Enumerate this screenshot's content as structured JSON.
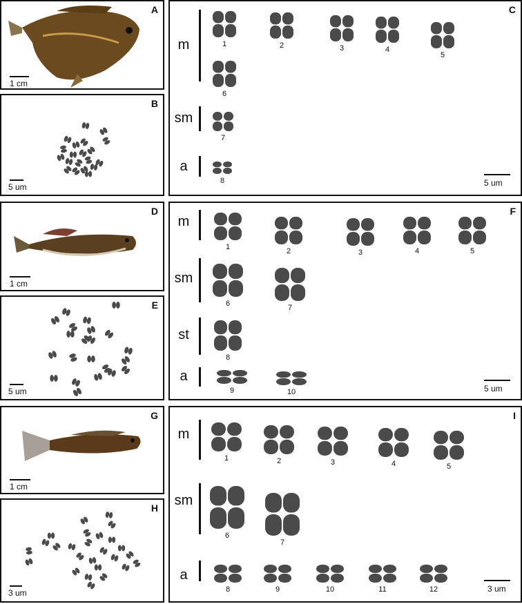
{
  "figures": [
    {
      "fish_label": "A",
      "spread_label": "B",
      "karyotype_label": "C",
      "fish_scale": "1 cm",
      "spread_scale": "5 um",
      "karyotype_scale": "5 um",
      "groups": [
        {
          "name": "m",
          "numbers": [
            "1",
            "2",
            "3",
            "4",
            "5",
            "6"
          ]
        },
        {
          "name": "sm",
          "numbers": [
            "7"
          ]
        },
        {
          "name": "a",
          "numbers": [
            "8"
          ]
        }
      ]
    },
    {
      "fish_label": "D",
      "spread_label": "E",
      "karyotype_label": "F",
      "fish_scale": "1 cm",
      "spread_scale": "5 um",
      "karyotype_scale": "5 um",
      "groups": [
        {
          "name": "m",
          "numbers": [
            "1",
            "2",
            "3",
            "4",
            "5"
          ]
        },
        {
          "name": "sm",
          "numbers": [
            "6",
            "7"
          ]
        },
        {
          "name": "st",
          "numbers": [
            "8"
          ]
        },
        {
          "name": "a",
          "numbers": [
            "9",
            "10"
          ]
        }
      ]
    },
    {
      "fish_label": "G",
      "spread_label": "H",
      "karyotype_label": "I",
      "fish_scale": "1 cm",
      "spread_scale": "3 um",
      "karyotype_scale": "3 um",
      "groups": [
        {
          "name": "m",
          "numbers": [
            "1",
            "2",
            "3",
            "4",
            "5"
          ]
        },
        {
          "name": "sm",
          "numbers": [
            "6",
            "7"
          ]
        },
        {
          "name": "a",
          "numbers": [
            "8",
            "9",
            "10",
            "11",
            "12"
          ]
        }
      ]
    }
  ],
  "colors": {
    "chromosome": "#4a4a4a",
    "border": "#111111",
    "fish_body": "#7a5a2a"
  }
}
